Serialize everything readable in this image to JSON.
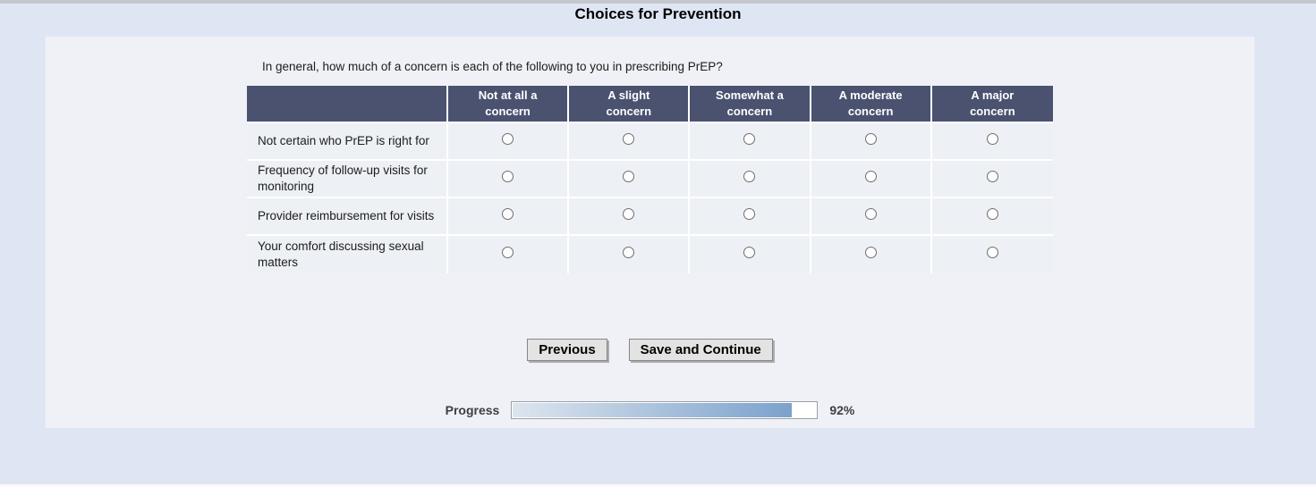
{
  "page": {
    "title": "Choices for Prevention"
  },
  "survey": {
    "question": "In general, how much of a concern is each of the following to you in prescribing PrEP?",
    "table": {
      "columns": [
        "Not at all a concern",
        "A slight concern",
        "Somewhat a concern",
        "A moderate concern",
        "A major concern"
      ],
      "rows": [
        {
          "label": "Not certain who PrEP is right for"
        },
        {
          "label": "Frequency of follow-up visits for monitoring"
        },
        {
          "label": "Provider reimbursement for visits"
        },
        {
          "label": "Your comfort discussing sexual matters"
        }
      ],
      "selection_state": "none-selected"
    },
    "buttons": {
      "previous": "Previous",
      "save_continue": "Save and Continue"
    },
    "progress": {
      "label": "Progress",
      "value": 92,
      "percent_text": "92%"
    }
  },
  "colors": {
    "page_bg": "#dfe6f3",
    "top_strip": "#c4c7cc",
    "panel_bg": "#eff1f6",
    "header_bg": "#4a5270",
    "header_text": "#ffffff",
    "cell_bg": "#edf0f5",
    "grid_line": "#ffffff",
    "text": "#1c1c1c",
    "button_bg": "#e3e3e3",
    "button_border": "#868686",
    "button_shadow": "#adadad",
    "progress_border": "#9aa0a6",
    "progress_fill_start": "#dde5ee",
    "progress_fill_end": "#7ba2cc",
    "progress_text": "#3b3f46"
  }
}
